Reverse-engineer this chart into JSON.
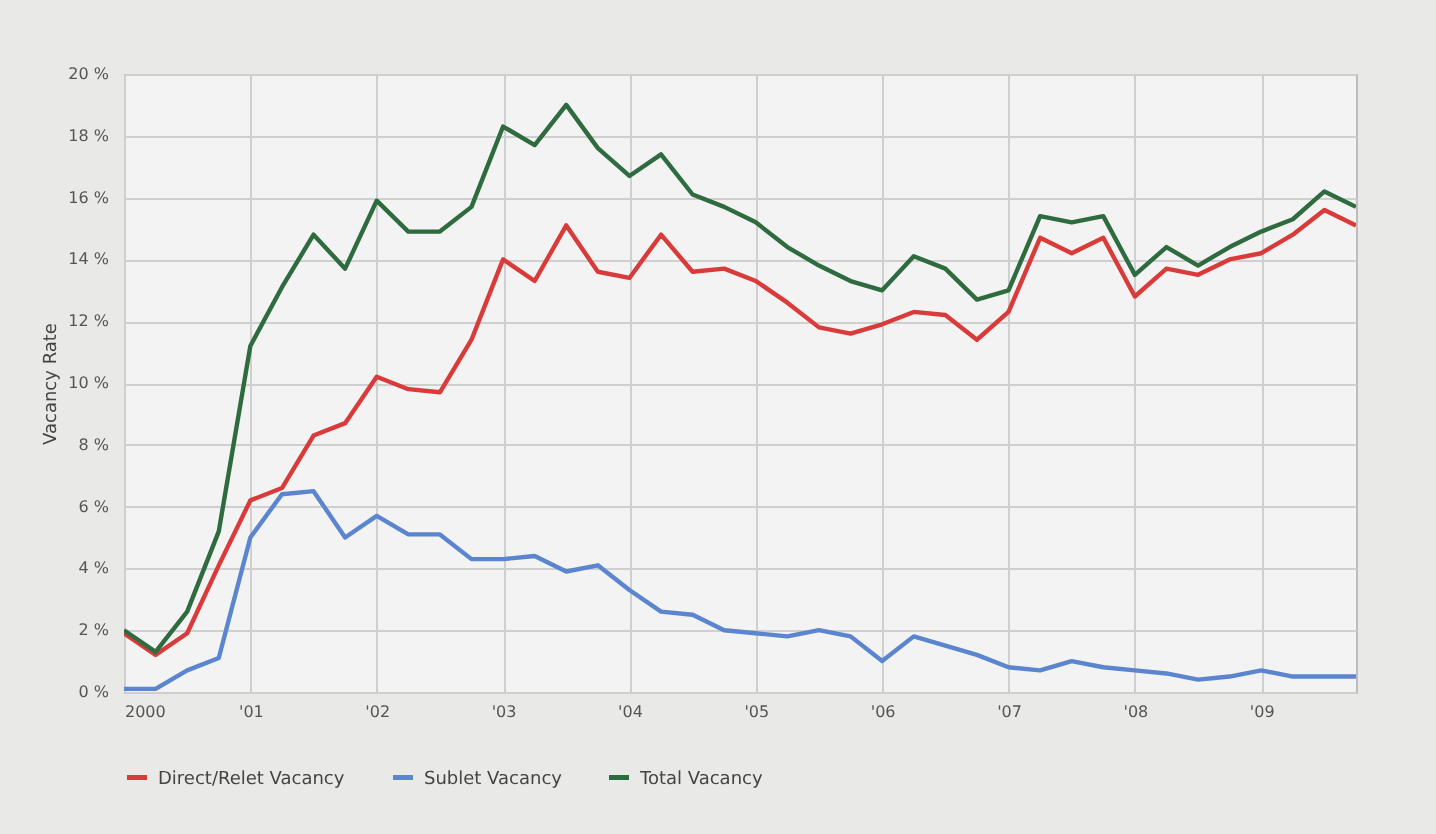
{
  "chart_data": {
    "type": "line",
    "ylabel": "Vacancy Rate",
    "x": [
      2000,
      2000.25,
      2000.5,
      2000.75,
      2001,
      2001.25,
      2001.5,
      2001.75,
      2002,
      2002.25,
      2002.5,
      2002.75,
      2003,
      2003.25,
      2003.5,
      2003.75,
      2004,
      2004.25,
      2004.5,
      2004.75,
      2005,
      2005.25,
      2005.5,
      2005.75,
      2006,
      2006.25,
      2006.5,
      2006.75,
      2007,
      2007.25,
      2007.5,
      2007.75,
      2008,
      2008.25,
      2008.5,
      2008.75,
      2009,
      2009.25,
      2009.5,
      2009.75
    ],
    "series": [
      {
        "name": "Direct/Relet Vacancy",
        "color": "#d93a3a",
        "values": [
          1.9,
          1.2,
          1.9,
          4.1,
          6.2,
          6.6,
          8.3,
          8.7,
          10.2,
          9.8,
          9.7,
          11.4,
          14.0,
          13.3,
          15.1,
          13.6,
          13.4,
          14.8,
          13.6,
          13.7,
          13.3,
          12.6,
          11.8,
          11.6,
          11.9,
          12.3,
          12.2,
          11.4,
          12.3,
          14.7,
          14.2,
          14.7,
          12.8,
          13.7,
          13.5,
          14.0,
          14.2,
          14.8,
          15.6,
          15.1
        ]
      },
      {
        "name": "Sublet Vacancy",
        "color": "#5b85cf",
        "values": [
          0.1,
          0.1,
          0.7,
          1.1,
          5.0,
          6.4,
          6.5,
          5.0,
          5.7,
          5.1,
          5.1,
          4.3,
          4.3,
          4.4,
          3.9,
          4.1,
          3.3,
          2.6,
          2.5,
          2.0,
          1.9,
          1.8,
          2.0,
          1.8,
          1.0,
          1.8,
          1.5,
          1.2,
          0.8,
          0.7,
          1.0,
          0.8,
          0.7,
          0.6,
          0.4,
          0.5,
          0.7,
          0.5,
          0.5,
          0.5
        ]
      },
      {
        "name": "Total Vacancy",
        "color": "#2e6b3f",
        "values": [
          2.0,
          1.3,
          2.6,
          5.2,
          11.2,
          13.1,
          14.8,
          13.7,
          15.9,
          14.9,
          14.9,
          15.7,
          18.3,
          17.7,
          19.0,
          17.6,
          16.7,
          17.4,
          16.1,
          15.7,
          15.2,
          14.4,
          13.8,
          13.3,
          13.0,
          14.1,
          13.7,
          12.7,
          13.0,
          15.4,
          15.2,
          15.4,
          13.5,
          14.4,
          13.8,
          14.4,
          14.9,
          15.3,
          16.2,
          15.7
        ]
      }
    ],
    "xlim": [
      2000,
      2009.75
    ],
    "xticks": [
      {
        "value": 2000,
        "label": "2000"
      },
      {
        "value": 2001,
        "label": "'01"
      },
      {
        "value": 2002,
        "label": "'02"
      },
      {
        "value": 2003,
        "label": "'03"
      },
      {
        "value": 2004,
        "label": "'04"
      },
      {
        "value": 2005,
        "label": "'05"
      },
      {
        "value": 2006,
        "label": "'06"
      },
      {
        "value": 2007,
        "label": "'07"
      },
      {
        "value": 2008,
        "label": "'08"
      },
      {
        "value": 2009,
        "label": "'09"
      }
    ],
    "ylim": [
      0,
      20
    ],
    "yticks": [
      {
        "value": 0,
        "label": "0 %"
      },
      {
        "value": 2,
        "label": "2 %"
      },
      {
        "value": 4,
        "label": "4 %"
      },
      {
        "value": 6,
        "label": "6 %"
      },
      {
        "value": 8,
        "label": "8 %"
      },
      {
        "value": 10,
        "label": "10 %"
      },
      {
        "value": 12,
        "label": "12 %"
      },
      {
        "value": 14,
        "label": "14 %"
      },
      {
        "value": 16,
        "label": "16 %"
      },
      {
        "value": 18,
        "label": "18 %"
      },
      {
        "value": 20,
        "label": "20 %"
      }
    ],
    "grid": true,
    "legend": "bottom"
  }
}
